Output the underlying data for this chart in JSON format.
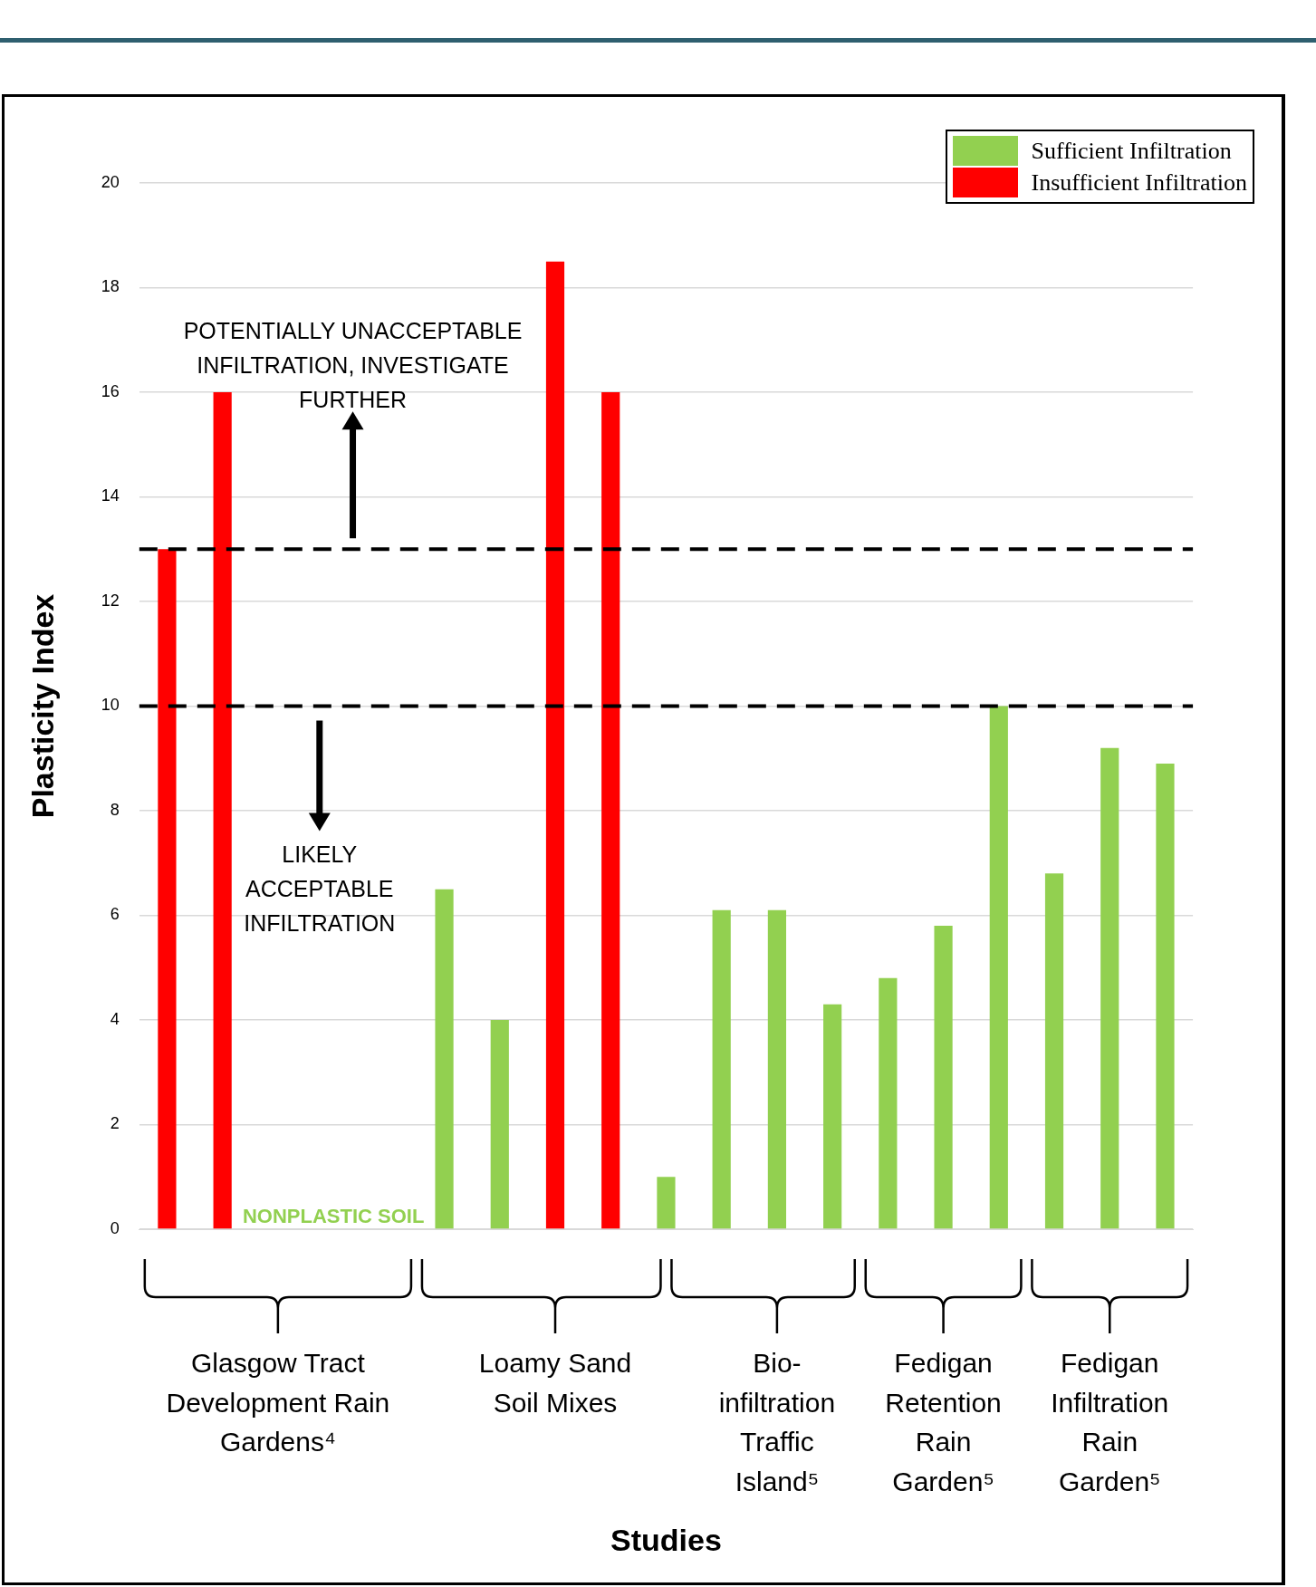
{
  "chart_data": {
    "type": "bar",
    "xlabel": "Studies",
    "ylabel": "Plasticity Index",
    "categories": [
      null,
      null,
      "Glasgow Tract\nDevelopment Rain\nGardens⁴",
      null,
      null,
      null,
      null,
      "Loamy Sand\nSoil Mixes",
      null,
      null,
      null,
      "Bio-\ninfiltration\nTraffic\nIsland⁵",
      null,
      null,
      "Fedigan\nRetention\nRain\nGarden⁵",
      null,
      null,
      "Fedigan\nInfiltration\nRain\nGarden⁵",
      null
    ],
    "series": [
      {
        "name": "Sufficient Infiltration",
        "color": "#92d050",
        "values": [
          null,
          null,
          0,
          0,
          0,
          6.5,
          4,
          null,
          null,
          1,
          6.1,
          6.1,
          4.3,
          4.8,
          5.8,
          10,
          6.8,
          9.2,
          8.9
        ]
      },
      {
        "name": "Insufficient Infiltration",
        "color": "#ff0000",
        "values": [
          13,
          16,
          null,
          null,
          null,
          null,
          null,
          18.5,
          16,
          null,
          null,
          null,
          null,
          null,
          null,
          null,
          null,
          null,
          null
        ]
      }
    ],
    "ylim": [
      0,
      20
    ],
    "yticks": [
      0,
      2,
      4,
      6,
      8,
      10,
      12,
      14,
      16,
      18,
      20
    ],
    "grid": "y",
    "legend": "top right",
    "ref_lines": [
      {
        "axis": "y",
        "value": 13,
        "color": "#000000",
        "line_style": "dashed"
      },
      {
        "axis": "y",
        "value": 10,
        "color": "#000000",
        "line_style": "dashed"
      }
    ],
    "annotations": [
      "NONPLASTIC SOIL",
      "POTENTIALLY UNACCEPTABLE\nINFILTRATION, INVESTIGATE\nFURTHER",
      "LIKELY\nACCEPTABLE\nINFILTRATION"
    ]
  }
}
